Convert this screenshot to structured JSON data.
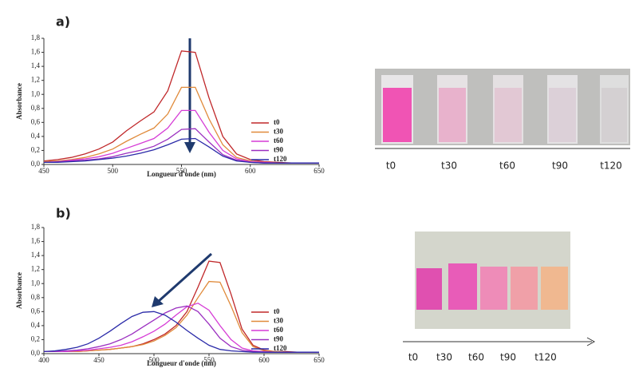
{
  "chart_data": [
    {
      "type": "line",
      "panel": "a)",
      "x_label": "Longueur d'onde (nm)",
      "y_label": "Absorbance",
      "x": [
        450,
        460,
        470,
        480,
        490,
        500,
        510,
        520,
        530,
        540,
        550,
        560,
        570,
        580,
        590,
        600,
        610,
        620,
        630,
        640,
        650
      ],
      "series": [
        {
          "name": "t0",
          "color": "#c0282a",
          "values": [
            0.05,
            0.07,
            0.1,
            0.15,
            0.22,
            0.32,
            0.48,
            0.62,
            0.75,
            1.05,
            1.62,
            1.6,
            0.95,
            0.4,
            0.15,
            0.07,
            0.04,
            0.03,
            0.02,
            0.02,
            0.02
          ]
        },
        {
          "name": "t30",
          "color": "#e08a3a",
          "values": [
            0.04,
            0.05,
            0.07,
            0.1,
            0.15,
            0.22,
            0.33,
            0.43,
            0.52,
            0.72,
            1.1,
            1.1,
            0.65,
            0.28,
            0.1,
            0.05,
            0.03,
            0.02,
            0.02,
            0.02,
            0.02
          ]
        },
        {
          "name": "t60",
          "color": "#d63cd6",
          "values": [
            0.03,
            0.04,
            0.06,
            0.08,
            0.11,
            0.16,
            0.23,
            0.3,
            0.37,
            0.52,
            0.77,
            0.77,
            0.46,
            0.2,
            0.08,
            0.04,
            0.03,
            0.02,
            0.02,
            0.02,
            0.02
          ]
        },
        {
          "name": "t90",
          "color": "#9b30c0",
          "values": [
            0.03,
            0.04,
            0.05,
            0.06,
            0.08,
            0.11,
            0.16,
            0.2,
            0.26,
            0.36,
            0.5,
            0.51,
            0.32,
            0.14,
            0.06,
            0.03,
            0.02,
            0.02,
            0.02,
            0.02,
            0.02
          ]
        },
        {
          "name": "t120",
          "color": "#2a2aa8",
          "values": [
            0.03,
            0.03,
            0.04,
            0.05,
            0.07,
            0.09,
            0.12,
            0.16,
            0.21,
            0.28,
            0.36,
            0.37,
            0.25,
            0.12,
            0.05,
            0.03,
            0.02,
            0.02,
            0.02,
            0.02,
            0.02
          ]
        }
      ],
      "xlim": [
        450,
        650
      ],
      "xticks": [
        450,
        500,
        550,
        600,
        650
      ],
      "ylim": [
        0,
        1.8
      ],
      "yticks": [
        {
          "value": 0,
          "label": "0,0"
        },
        {
          "value": 0.2,
          "label": "0,2"
        },
        {
          "value": 0.4,
          "label": "0,4"
        },
        {
          "value": 0.6,
          "label": "0,6"
        },
        {
          "value": 0.8,
          "label": "0,8"
        },
        {
          "value": 1.0,
          "label": "1,0"
        },
        {
          "value": 1.2,
          "label": "1,2"
        },
        {
          "value": 1.4,
          "label": "1,4"
        },
        {
          "value": 1.6,
          "label": "1,6"
        },
        {
          "value": 1.8,
          "label": "1,8"
        }
      ],
      "legend": "lower right",
      "photo_labels": [
        "t0",
        "t30",
        "t60",
        "t90",
        "t120"
      ]
    },
    {
      "type": "line",
      "panel": "b)",
      "x_label": "Longueur d'onde (nm)",
      "y_label": "Absorbance",
      "x": [
        400,
        410,
        420,
        430,
        440,
        450,
        460,
        470,
        480,
        490,
        500,
        510,
        520,
        530,
        540,
        550,
        560,
        570,
        580,
        590,
        600,
        610,
        620,
        630,
        640,
        650
      ],
      "series": [
        {
          "name": "t0",
          "color": "#c0282a",
          "values": [
            0.03,
            0.03,
            0.03,
            0.03,
            0.04,
            0.05,
            0.06,
            0.08,
            0.1,
            0.14,
            0.2,
            0.28,
            0.4,
            0.6,
            0.95,
            1.32,
            1.3,
            0.85,
            0.35,
            0.12,
            0.05,
            0.03,
            0.03,
            0.02,
            0.02,
            0.02
          ]
        },
        {
          "name": "t30",
          "color": "#e08a3a",
          "values": [
            0.03,
            0.03,
            0.03,
            0.03,
            0.04,
            0.05,
            0.06,
            0.08,
            0.1,
            0.13,
            0.18,
            0.26,
            0.37,
            0.55,
            0.8,
            1.03,
            1.02,
            0.68,
            0.3,
            0.1,
            0.04,
            0.03,
            0.02,
            0.02,
            0.02,
            0.02
          ]
        },
        {
          "name": "t60",
          "color": "#d63cd6",
          "values": [
            0.03,
            0.03,
            0.03,
            0.04,
            0.05,
            0.07,
            0.09,
            0.12,
            0.17,
            0.24,
            0.32,
            0.42,
            0.55,
            0.67,
            0.72,
            0.62,
            0.4,
            0.2,
            0.08,
            0.04,
            0.03,
            0.02,
            0.02,
            0.02,
            0.02,
            0.02
          ]
        },
        {
          "name": "t90",
          "color": "#9b30c0",
          "values": [
            0.03,
            0.03,
            0.04,
            0.05,
            0.07,
            0.1,
            0.14,
            0.2,
            0.28,
            0.38,
            0.48,
            0.58,
            0.65,
            0.68,
            0.6,
            0.42,
            0.22,
            0.1,
            0.05,
            0.03,
            0.02,
            0.02,
            0.02,
            0.02,
            0.02,
            0.02
          ]
        },
        {
          "name": "t120",
          "color": "#2a2aa8",
          "values": [
            0.03,
            0.04,
            0.06,
            0.09,
            0.14,
            0.22,
            0.32,
            0.43,
            0.53,
            0.59,
            0.6,
            0.55,
            0.45,
            0.33,
            0.22,
            0.12,
            0.06,
            0.04,
            0.03,
            0.02,
            0.02,
            0.02,
            0.02,
            0.02,
            0.02,
            0.02
          ]
        }
      ],
      "xlim": [
        400,
        650
      ],
      "xticks": [
        400,
        450,
        500,
        550,
        600,
        650
      ],
      "ylim": [
        0,
        1.8
      ],
      "yticks": [
        {
          "value": 0,
          "label": "0,0"
        },
        {
          "value": 0.2,
          "label": "0,2"
        },
        {
          "value": 0.4,
          "label": "0,4"
        },
        {
          "value": 0.6,
          "label": "0,6"
        },
        {
          "value": 0.8,
          "label": "0,8"
        },
        {
          "value": 1.0,
          "label": "1,0"
        },
        {
          "value": 1.2,
          "label": "1,2"
        },
        {
          "value": 1.4,
          "label": "1,4"
        },
        {
          "value": 1.6,
          "label": "1,6"
        },
        {
          "value": 1.8,
          "label": "1,8"
        }
      ],
      "legend": "lower right",
      "photo_labels": [
        "t0",
        "t30",
        "t60",
        "t90",
        "t120"
      ]
    }
  ]
}
